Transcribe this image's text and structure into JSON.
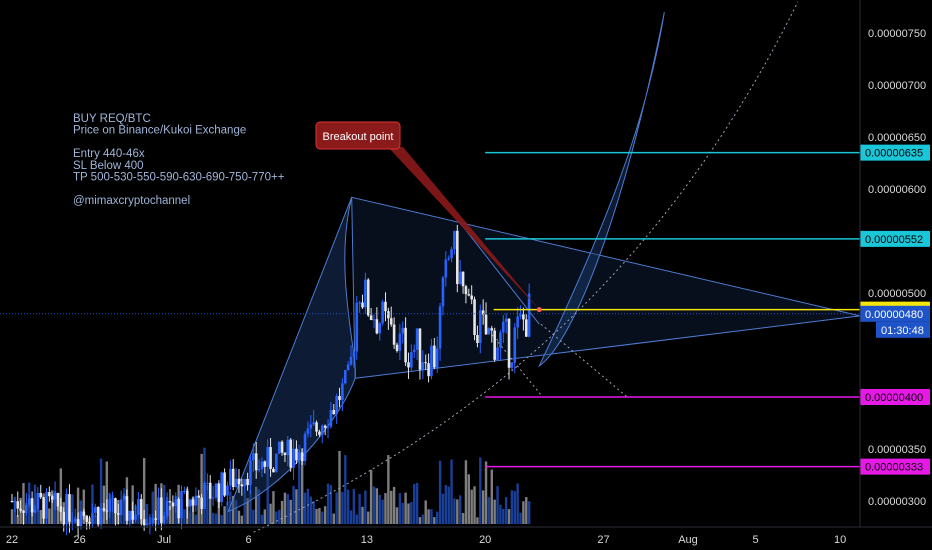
{
  "chart_data": {
    "type": "candlestick",
    "symbol": "REQ/BTC",
    "colors": {
      "background": "#000000",
      "candle_up": "#2962ff",
      "candle_down": "#e6e6e6",
      "volume_up": "#1f4fbf",
      "volume_down": "#9e9e9e",
      "pattern_fill": "#1d3d73",
      "pattern_stroke": "#4c7bd1",
      "breakout": "#8b1a1a",
      "tp_line": "#19c7d8",
      "sl_line": "#e619e6",
      "entry_line": "#f5e50a",
      "price_marker": "#1e53c9"
    },
    "x_axis": {
      "ticks": [
        {
          "label": "22",
          "day": 0
        },
        {
          "label": "26",
          "day": 4
        },
        {
          "label": "Jul",
          "day": 9
        },
        {
          "label": "6",
          "day": 14
        },
        {
          "label": "13",
          "day": 21
        },
        {
          "label": "20",
          "day": 28
        },
        {
          "label": "27",
          "day": 35
        },
        {
          "label": "Aug",
          "day": 40
        },
        {
          "label": "5",
          "day": 44
        },
        {
          "label": "10",
          "day": 49
        }
      ]
    },
    "y_axis": {
      "ylim": [
        2.7e-06,
        7.8e-06
      ],
      "ticks": [
        {
          "label": "0.00000750",
          "value": 7.5e-06
        },
        {
          "label": "0.00000700",
          "value": 7e-06
        },
        {
          "label": "0.00000650",
          "value": 6.5e-06
        },
        {
          "label": "0.00000600",
          "value": 6e-06
        },
        {
          "label": "0.00000500",
          "value": 5e-06
        },
        {
          "label": "0.00000350",
          "value": 3.5e-06
        },
        {
          "label": "0.00000300",
          "value": 3e-06
        }
      ]
    },
    "levels": [
      {
        "label": "0.00000635",
        "value": 6.35e-06,
        "kind": "tp",
        "line_start_day": 28
      },
      {
        "label": "0.00000552",
        "value": 5.52e-06,
        "kind": "tp",
        "line_start_day": 28
      },
      {
        "label": "0.00000484",
        "value": 4.84e-06,
        "kind": "entry",
        "line_start_day": 28.5
      },
      {
        "label": "0.00000400",
        "value": 4e-06,
        "kind": "sl",
        "line_start_day": 28
      },
      {
        "label": "0.00000333",
        "value": 3.33e-06,
        "kind": "sl",
        "line_start_day": 28
      }
    ],
    "current_price": {
      "label": "0.00000480",
      "value": 4.8e-06,
      "countdown": "01:30:48"
    },
    "candle_seed": {
      "daily_closes": [
        [
          0,
          3e-06
        ],
        [
          4,
          2.9e-06
        ],
        [
          9,
          2.9e-06
        ],
        [
          12,
          3.1e-06
        ],
        [
          14,
          3.3e-06
        ],
        [
          17,
          3.5e-06
        ],
        [
          19,
          3.9e-06
        ],
        [
          20,
          4.2e-06
        ],
        [
          20.5,
          5.1e-06
        ],
        [
          21,
          4.9e-06
        ],
        [
          23,
          4.5e-06
        ],
        [
          25,
          4.4e-06
        ],
        [
          26,
          5.5e-06
        ],
        [
          27,
          4.8e-06
        ],
        [
          28,
          4.6e-06
        ],
        [
          29.5,
          4.5e-06
        ],
        [
          30.5,
          4.8e-06
        ]
      ]
    },
    "annotations": {
      "note_lines": [
        "BUY REQ/BTC",
        "Price on Binance/Kukoi Exchange",
        "",
        "Entry 440-46x",
        "SL Below 400",
        "TP 500-530-550-590-630-690-750-770++",
        "",
        "@mimaxcryptochannel"
      ],
      "breakout_label": "Breakout point"
    }
  }
}
